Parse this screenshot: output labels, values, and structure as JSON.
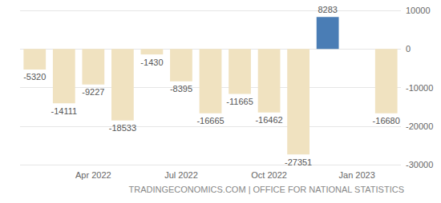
{
  "chart_data": {
    "type": "bar",
    "categories": [
      null,
      null,
      "Apr 2022",
      null,
      null,
      "Jul 2022",
      null,
      null,
      "Oct 2022",
      null,
      null,
      "Jan 2023",
      null
    ],
    "values": [
      -5320,
      -14111,
      -9227,
      -18533,
      -1430,
      -8395,
      -16665,
      -11665,
      -16462,
      -27351,
      8283,
      null,
      -16680
    ],
    "colors": [
      "#f0e2c0",
      "#f0e2c0",
      "#f0e2c0",
      "#f0e2c0",
      "#f0e2c0",
      "#f0e2c0",
      "#f0e2c0",
      "#f0e2c0",
      "#f0e2c0",
      "#f0e2c0",
      "#4a7db5",
      "#f0e2c0",
      "#f0e2c0"
    ],
    "ylim": [
      -30000,
      10000
    ],
    "yticks": [
      -30000,
      -20000,
      -10000,
      0,
      10000
    ],
    "grid": true,
    "data_labels": true,
    "annotations": [
      "TRADINGECONOMICS.COM | OFFICE FOR NATIONAL STATISTICS"
    ]
  }
}
